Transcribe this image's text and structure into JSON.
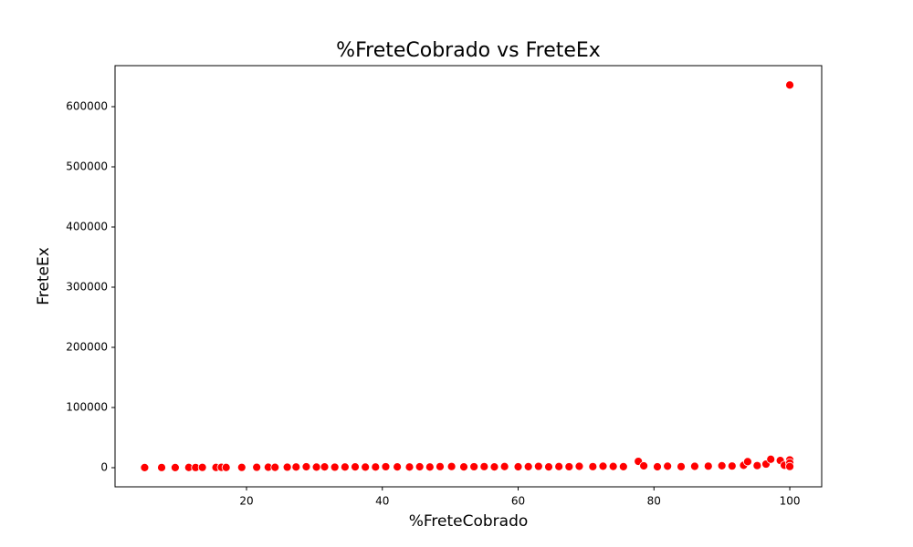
{
  "chart_data": {
    "type": "scatter",
    "title": "%FreteCobrado vs FreteEx",
    "x_label": "%FreteCobrado",
    "y_label": "FreteEx",
    "color": "#ff0000",
    "x": [
      5,
      7.5,
      9.5,
      11.5,
      12.5,
      13.5,
      15.5,
      16.3,
      17,
      19.3,
      21.5,
      23.2,
      24.2,
      26,
      27.3,
      28.8,
      30.3,
      31.5,
      33,
      34.5,
      36,
      37.5,
      39,
      40.5,
      42.2,
      44,
      45.5,
      47,
      48.5,
      50.2,
      52,
      53.5,
      55,
      56.5,
      58,
      60,
      61.5,
      63,
      64.5,
      66,
      67.5,
      69,
      71,
      72.5,
      74,
      75.5,
      77.7,
      78.5,
      80.5,
      82,
      84,
      86,
      88,
      90,
      91.5,
      93.2,
      93.8,
      95.2,
      96.5,
      97.2,
      98.6,
      99.2,
      100,
      100,
      100,
      100
    ],
    "y": [
      200,
      300,
      250,
      400,
      300,
      500,
      350,
      600,
      400,
      500,
      700,
      800,
      600,
      900,
      1200,
      1500,
      1000,
      1300,
      900,
      1100,
      1400,
      1000,
      1200,
      1600,
      1300,
      1100,
      1500,
      1200,
      1800,
      2000,
      1400,
      1600,
      1800,
      1300,
      1900,
      1500,
      1700,
      2200,
      1400,
      1900,
      1600,
      2300,
      1800,
      2500,
      2100,
      1700,
      10500,
      3000,
      1500,
      2500,
      1800,
      2300,
      2600,
      3200,
      2800,
      4000,
      10000,
      3500,
      6000,
      14000,
      12000,
      4000,
      13000,
      8000,
      2000,
      636000
    ],
    "xlim": [
      0.64,
      104.7
    ],
    "ylim": [
      -31800,
      668200
    ],
    "xticks": [
      20,
      40,
      60,
      80,
      100
    ],
    "yticks": [
      0,
      100000,
      200000,
      300000,
      400000,
      500000,
      600000
    ]
  }
}
